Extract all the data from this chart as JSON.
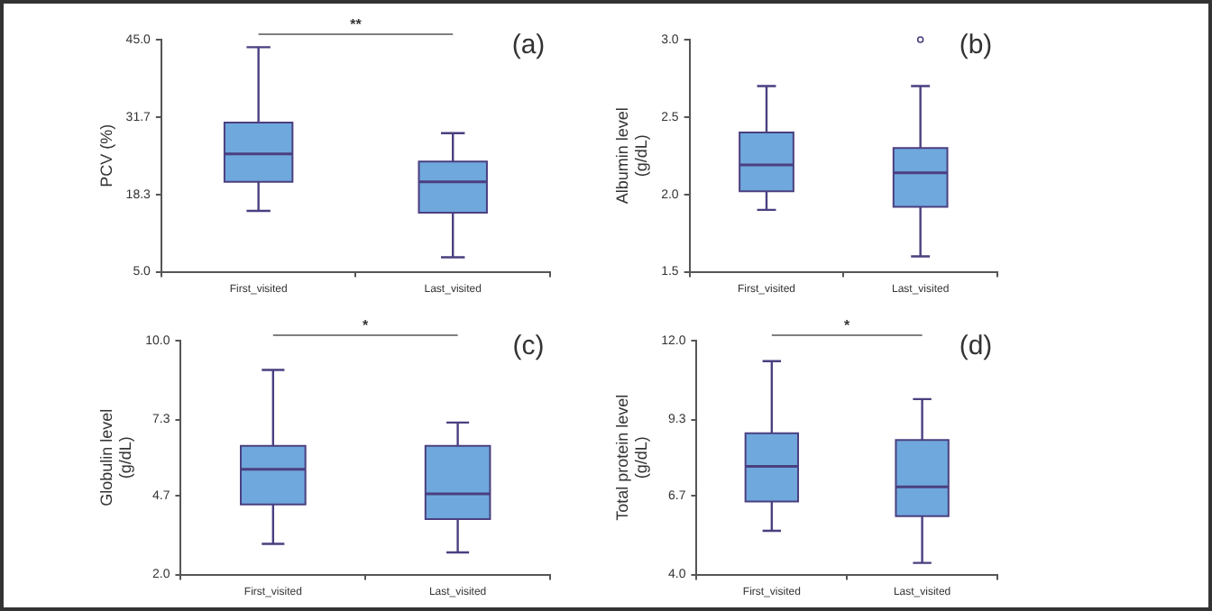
{
  "chart_data": [
    {
      "type": "box",
      "categories": [
        "First_visited",
        "Last_visited"
      ],
      "ylabel": "PCV (%)",
      "ylim": [
        5,
        45
      ],
      "yticks": [
        {
          "value": 5,
          "label": "5.0"
        },
        18.3,
        31.7,
        {
          "value": 45,
          "label": "45.0"
        }
      ],
      "color": "#6fa8dc",
      "grid": false,
      "legend": false,
      "boxes": [
        {
          "low": 15.5,
          "q1": 20.5,
          "median": 25.3,
          "q3": 30.7,
          "high": 43.7
        },
        {
          "low": 7.5,
          "q1": 15.2,
          "median": 20.5,
          "q3": 24.0,
          "high": 28.9
        }
      ],
      "annotations": [
        "**",
        "(a)"
      ]
    },
    {
      "type": "box",
      "categories": [
        "First_visited",
        "Last_visited"
      ],
      "ylabel": "Albumin level\n(g/dL)",
      "ylim": [
        1.5,
        3
      ],
      "yticks": [
        1.5,
        {
          "value": 2,
          "label": "2.0"
        },
        2.5,
        {
          "value": 3,
          "label": "3.0"
        }
      ],
      "color": "#6fa8dc",
      "grid": false,
      "legend": false,
      "boxes": [
        {
          "low": 1.9,
          "q1": 2.02,
          "median": 2.19,
          "q3": 2.4,
          "high": 2.7
        },
        {
          "low": 1.6,
          "q1": 1.92,
          "median": 2.14,
          "q3": 2.3,
          "high": 2.7,
          "outliers": [
            3.0
          ]
        }
      ],
      "annotations": [
        "(b)"
      ]
    },
    {
      "type": "box",
      "categories": [
        "First_visited",
        "Last_visited"
      ],
      "ylabel": "Globulin level\n(g/dL)",
      "ylim": [
        2,
        10
      ],
      "yticks": [
        {
          "value": 2,
          "label": "2.0"
        },
        4.7,
        7.3,
        {
          "value": 10,
          "label": "10.0"
        }
      ],
      "color": "#6fa8dc",
      "grid": false,
      "legend": false,
      "boxes": [
        {
          "low": 3.05,
          "q1": 4.4,
          "median": 5.6,
          "q3": 6.4,
          "high": 9.0
        },
        {
          "low": 2.76,
          "q1": 3.9,
          "median": 4.76,
          "q3": 6.4,
          "high": 7.2
        }
      ],
      "annotations": [
        "*",
        "(c)"
      ]
    },
    {
      "type": "box",
      "categories": [
        "First_visited",
        "Last_visited"
      ],
      "ylabel": "Total protein level\n(g/dL)",
      "ylim": [
        4,
        12
      ],
      "yticks": [
        {
          "value": 4,
          "label": "4.0"
        },
        6.7,
        9.3,
        {
          "value": 12,
          "label": "12.0"
        }
      ],
      "color": "#6fa8dc",
      "grid": false,
      "legend": false,
      "boxes": [
        {
          "low": 5.5,
          "q1": 6.5,
          "median": 7.7,
          "q3": 8.83,
          "high": 11.3
        },
        {
          "low": 4.4,
          "q1": 6.0,
          "median": 7.0,
          "q3": 8.6,
          "high": 10.0
        }
      ],
      "annotations": [
        "*",
        "(d)"
      ]
    }
  ]
}
